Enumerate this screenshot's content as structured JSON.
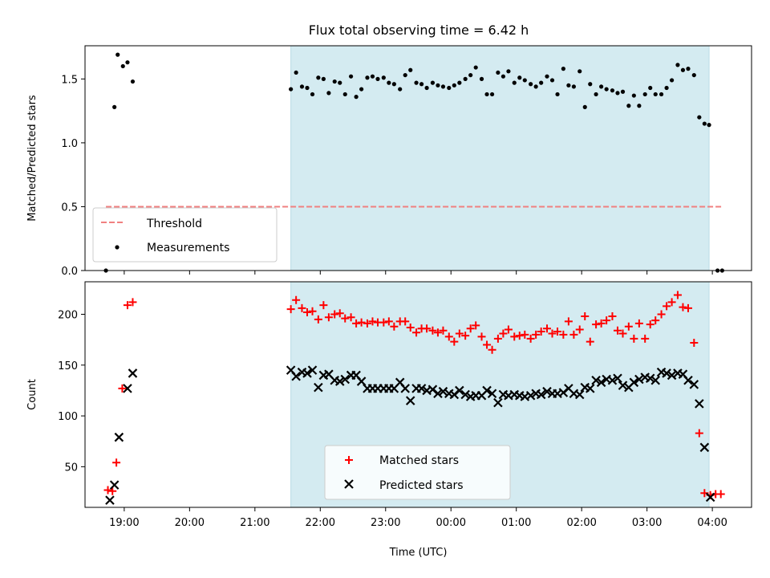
{
  "figure": {
    "title": "Flux total observing time = 6.42 h"
  },
  "chart_data": [
    {
      "type": "scatter",
      "name": "ratio-panel",
      "ylabel": "Matched/Predicted stars",
      "xlabel": "",
      "xlim": [
        18.4,
        28.6
      ],
      "ylim": [
        0,
        1.76
      ],
      "yticks": [
        0.0,
        0.5,
        1.0,
        1.5
      ],
      "ytick_labels": [
        "0.0",
        "0.5",
        "1.0",
        "1.5"
      ],
      "shaded_interval": [
        21.55,
        27.95
      ],
      "threshold": {
        "value": 0.5,
        "x_range": [
          18.72,
          28.15
        ],
        "color": "#f08080",
        "label": "Threshold"
      },
      "legend": {
        "position": "lower-left",
        "entries": [
          "Threshold",
          "Measurements"
        ]
      },
      "series": [
        {
          "name": "Measurements",
          "marker": "dot",
          "color": "#000000",
          "x": [
            18.72,
            18.85,
            18.9,
            18.98,
            19.05,
            19.13,
            21.55,
            21.63,
            21.72,
            21.8,
            21.88,
            21.97,
            22.05,
            22.13,
            22.22,
            22.3,
            22.38,
            22.47,
            22.55,
            22.63,
            22.72,
            22.8,
            22.88,
            22.97,
            23.05,
            23.13,
            23.22,
            23.3,
            23.38,
            23.47,
            23.55,
            23.63,
            23.72,
            23.8,
            23.88,
            23.97,
            24.05,
            24.13,
            24.22,
            24.3,
            24.38,
            24.47,
            24.55,
            24.63,
            24.72,
            24.8,
            24.88,
            24.97,
            25.05,
            25.13,
            25.22,
            25.3,
            25.38,
            25.47,
            25.55,
            25.63,
            25.72,
            25.8,
            25.88,
            25.97,
            26.05,
            26.13,
            26.22,
            26.3,
            26.38,
            26.47,
            26.55,
            26.63,
            26.72,
            26.8,
            26.88,
            26.97,
            27.05,
            27.13,
            27.22,
            27.3,
            27.38,
            27.47,
            27.55,
            27.63,
            27.72,
            27.8,
            27.88,
            27.95,
            28.08,
            28.15
          ],
          "y": [
            0.0,
            1.28,
            1.69,
            1.6,
            1.63,
            1.48,
            1.42,
            1.55,
            1.44,
            1.43,
            1.38,
            1.51,
            1.5,
            1.39,
            1.48,
            1.47,
            1.38,
            1.52,
            1.36,
            1.42,
            1.51,
            1.52,
            1.5,
            1.51,
            1.47,
            1.46,
            1.42,
            1.53,
            1.57,
            1.47,
            1.46,
            1.43,
            1.47,
            1.45,
            1.44,
            1.43,
            1.45,
            1.47,
            1.5,
            1.53,
            1.59,
            1.5,
            1.38,
            1.38,
            1.55,
            1.52,
            1.56,
            1.47,
            1.51,
            1.49,
            1.46,
            1.44,
            1.47,
            1.52,
            1.49,
            1.38,
            1.58,
            1.45,
            1.44,
            1.56,
            1.28,
            1.46,
            1.38,
            1.44,
            1.42,
            1.41,
            1.39,
            1.4,
            1.29,
            1.37,
            1.29,
            1.38,
            1.43,
            1.38,
            1.38,
            1.43,
            1.49,
            1.61,
            1.57,
            1.58,
            1.53,
            1.2,
            1.15,
            1.14,
            0.0,
            0.0
          ]
        }
      ]
    },
    {
      "type": "scatter",
      "name": "count-panel",
      "ylabel": "Count",
      "xlabel": "Time (UTC)",
      "xlim": [
        18.4,
        28.6
      ],
      "ylim": [
        10,
        232
      ],
      "yticks": [
        50,
        100,
        150,
        200
      ],
      "ytick_labels": [
        "50",
        "100",
        "150",
        "200"
      ],
      "xticks": [
        19,
        20,
        21,
        22,
        23,
        24,
        25,
        26,
        27,
        28
      ],
      "xtick_labels": [
        "19:00",
        "20:00",
        "21:00",
        "22:00",
        "23:00",
        "00:00",
        "01:00",
        "02:00",
        "03:00",
        "04:00"
      ],
      "shaded_interval": [
        21.55,
        27.95
      ],
      "legend": {
        "position": "lower-center",
        "entries": [
          "Matched stars",
          "Predicted stars"
        ]
      },
      "series": [
        {
          "name": "Matched stars",
          "marker": "plus",
          "color": "#ff0000",
          "x": [
            18.75,
            18.82,
            18.88,
            18.97,
            19.05,
            19.13,
            21.55,
            21.63,
            21.72,
            21.8,
            21.88,
            21.97,
            22.05,
            22.13,
            22.22,
            22.3,
            22.38,
            22.47,
            22.55,
            22.63,
            22.72,
            22.8,
            22.88,
            22.97,
            23.05,
            23.13,
            23.22,
            23.3,
            23.38,
            23.47,
            23.55,
            23.63,
            23.72,
            23.8,
            23.88,
            23.97,
            24.05,
            24.13,
            24.22,
            24.3,
            24.38,
            24.47,
            24.55,
            24.63,
            24.72,
            24.8,
            24.88,
            24.97,
            25.05,
            25.13,
            25.22,
            25.3,
            25.38,
            25.47,
            25.55,
            25.63,
            25.72,
            25.8,
            25.88,
            25.97,
            26.05,
            26.13,
            26.22,
            26.3,
            26.38,
            26.47,
            26.55,
            26.63,
            26.72,
            26.8,
            26.88,
            26.97,
            27.05,
            27.13,
            27.22,
            27.3,
            27.38,
            27.47,
            27.55,
            27.63,
            27.72,
            27.8,
            27.88,
            27.97,
            28.05,
            28.13
          ],
          "y": [
            27,
            26,
            54,
            127,
            209,
            212,
            205,
            214,
            206,
            202,
            203,
            195,
            209,
            197,
            200,
            201,
            196,
            197,
            191,
            192,
            191,
            193,
            192,
            192,
            193,
            188,
            193,
            193,
            187,
            182,
            186,
            186,
            184,
            182,
            184,
            178,
            173,
            181,
            179,
            186,
            189,
            178,
            170,
            165,
            176,
            181,
            185,
            178,
            179,
            180,
            176,
            180,
            183,
            186,
            181,
            183,
            180,
            193,
            180,
            185,
            198,
            173,
            190,
            191,
            194,
            198,
            184,
            181,
            188,
            176,
            191,
            176,
            190,
            194,
            200,
            208,
            212,
            219,
            207,
            206,
            172,
            83,
            24,
            22,
            23,
            23
          ]
        },
        {
          "name": "Predicted stars",
          "marker": "x",
          "color": "#000000",
          "x": [
            18.78,
            18.85,
            18.92,
            19.05,
            19.13,
            21.55,
            21.63,
            21.72,
            21.8,
            21.88,
            21.97,
            22.05,
            22.13,
            22.22,
            22.3,
            22.38,
            22.47,
            22.55,
            22.63,
            22.72,
            22.8,
            22.88,
            22.97,
            23.05,
            23.13,
            23.22,
            23.3,
            23.38,
            23.47,
            23.55,
            23.63,
            23.72,
            23.8,
            23.88,
            23.97,
            24.05,
            24.13,
            24.22,
            24.3,
            24.38,
            24.47,
            24.55,
            24.63,
            24.72,
            24.8,
            24.88,
            24.97,
            25.05,
            25.13,
            25.22,
            25.3,
            25.38,
            25.47,
            25.55,
            25.63,
            25.72,
            25.8,
            25.88,
            25.97,
            26.05,
            26.13,
            26.22,
            26.3,
            26.38,
            26.47,
            26.55,
            26.63,
            26.72,
            26.8,
            26.88,
            26.97,
            27.05,
            27.13,
            27.22,
            27.3,
            27.38,
            27.47,
            27.55,
            27.63,
            27.72,
            27.8,
            27.88,
            27.97
          ],
          "y": [
            17,
            32,
            79,
            127,
            142,
            145,
            139,
            143,
            142,
            145,
            128,
            140,
            141,
            135,
            134,
            136,
            140,
            140,
            134,
            127,
            127,
            127,
            127,
            127,
            127,
            133,
            127,
            115,
            127,
            127,
            125,
            126,
            122,
            124,
            122,
            121,
            125,
            121,
            119,
            120,
            120,
            125,
            122,
            113,
            121,
            120,
            121,
            120,
            119,
            120,
            122,
            121,
            124,
            122,
            122,
            123,
            127,
            122,
            121,
            128,
            127,
            135,
            133,
            136,
            135,
            137,
            130,
            128,
            133,
            136,
            138,
            137,
            135,
            143,
            142,
            140,
            142,
            141,
            135,
            131,
            112,
            69,
            20
          ]
        }
      ]
    }
  ]
}
